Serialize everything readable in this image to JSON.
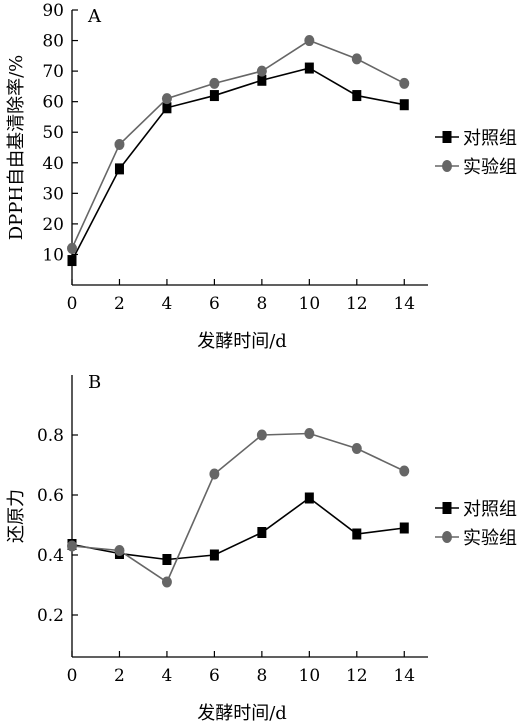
{
  "chart_data": [
    {
      "type": "line",
      "panel_label": "A",
      "xlabel": "发酵时间/d",
      "ylabel": "DPPH自由基清除率/%",
      "x": [
        0,
        2,
        4,
        6,
        8,
        10,
        12,
        14
      ],
      "xticks": [
        "0",
        "2",
        "4",
        "6",
        "8",
        "10",
        "12",
        "14"
      ],
      "xlim": [
        0,
        15
      ],
      "ylim": [
        0,
        90
      ],
      "yticks": [
        "10",
        "20",
        "30",
        "40",
        "50",
        "60",
        "70",
        "80",
        "90"
      ],
      "legend_position": "right",
      "grid": false,
      "series": [
        {
          "name": "对照组",
          "marker": "square",
          "color": "#000000",
          "values": [
            8,
            38,
            58,
            62,
            67,
            71,
            62,
            59
          ]
        },
        {
          "name": "实验组",
          "marker": "circle",
          "color": "#666666",
          "values": [
            12,
            46,
            61,
            66,
            70,
            80,
            74,
            66
          ]
        }
      ]
    },
    {
      "type": "line",
      "panel_label": "B",
      "xlabel": "发酵时间/d",
      "ylabel": "还原力",
      "x": [
        0,
        2,
        4,
        6,
        8,
        10,
        12,
        14
      ],
      "xticks": [
        "0",
        "2",
        "4",
        "6",
        "8",
        "10",
        "12",
        "14"
      ],
      "xlim": [
        0,
        15
      ],
      "ylim": [
        0.06,
        1.0
      ],
      "yticks": [
        "0.2",
        "0.4",
        "0.6",
        "0.8"
      ],
      "legend_position": "right",
      "grid": false,
      "series": [
        {
          "name": "对照组",
          "marker": "square",
          "color": "#000000",
          "values": [
            0.435,
            0.405,
            0.385,
            0.4,
            0.475,
            0.59,
            0.47,
            0.49
          ]
        },
        {
          "name": "实验组",
          "marker": "circle",
          "color": "#666666",
          "values": [
            0.43,
            0.415,
            0.31,
            0.67,
            0.8,
            0.805,
            0.755,
            0.68
          ]
        }
      ]
    }
  ]
}
